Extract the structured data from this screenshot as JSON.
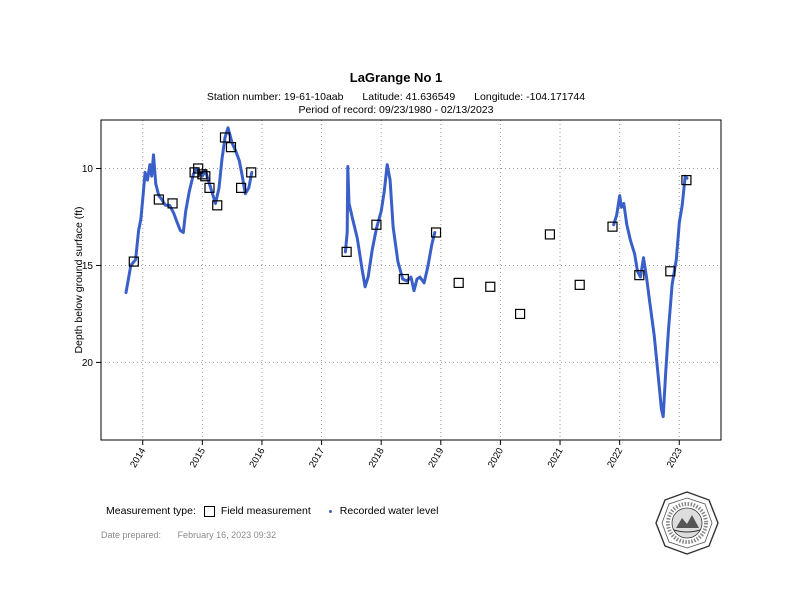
{
  "header": {
    "title": "LaGrange No 1",
    "station": "Station number: 19-61-10aab",
    "latitude": "Latitude: 41.636549",
    "longitude": "Longitude: -104.171744",
    "period": "Period of record: 09/23/1980 - 02/13/2023"
  },
  "legend": {
    "title": "Measurement type:",
    "field_label": "Field measurement",
    "recorded_label": "Recorded water level"
  },
  "footer": {
    "prepared_label": "Date prepared:",
    "prepared_value": "February 16, 2023 09:32"
  },
  "seal": {
    "text": "Wyoming State Engineer's Office"
  },
  "colors": {
    "recorded": "#3a5fc9",
    "field": "#000000",
    "grid": "#9a9a9a"
  },
  "chart_data": {
    "type": "scatter",
    "title": "LaGrange No 1",
    "xlabel": "",
    "ylabel": "Depth below ground surface (ft)",
    "xlim": [
      2013.3,
      2023.7
    ],
    "ylim": [
      24,
      7.5
    ],
    "y_inverted": true,
    "x_ticks": [
      2014,
      2015,
      2016,
      2017,
      2018,
      2019,
      2020,
      2021,
      2022,
      2023
    ],
    "x_tick_labels": [
      "2014",
      "2015",
      "2016",
      "2017",
      "2018",
      "2019",
      "2020",
      "2021",
      "2022",
      "2023"
    ],
    "y_ticks": [
      10,
      15,
      20
    ],
    "y_tick_labels": [
      "10",
      "15",
      "20"
    ],
    "grid": true,
    "legend_position": "bottom-left",
    "series": [
      {
        "name": "Recorded water level",
        "type": "line",
        "segments": [
          [
            [
              2013.72,
              16.4
            ],
            [
              2013.8,
              15.0
            ],
            [
              2013.88,
              14.7
            ],
            [
              2013.93,
              13.2
            ],
            [
              2013.97,
              12.6
            ],
            [
              2014.0,
              11.6
            ],
            [
              2014.04,
              10.2
            ],
            [
              2014.08,
              10.6
            ],
            [
              2014.12,
              9.8
            ],
            [
              2014.15,
              10.4
            ],
            [
              2014.18,
              9.3
            ],
            [
              2014.22,
              10.8
            ],
            [
              2014.27,
              11.4
            ],
            [
              2014.32,
              11.6
            ],
            [
              2014.38,
              11.9
            ],
            [
              2014.45,
              11.9
            ],
            [
              2014.52,
              12.3
            ],
            [
              2014.58,
              12.8
            ],
            [
              2014.63,
              13.2
            ],
            [
              2014.68,
              13.3
            ],
            [
              2014.72,
              12.2
            ],
            [
              2014.78,
              11.2
            ],
            [
              2014.85,
              10.3
            ],
            [
              2014.9,
              10.0
            ],
            [
              2014.95,
              10.2
            ],
            [
              2015.0,
              10.4
            ],
            [
              2015.05,
              10.1
            ],
            [
              2015.1,
              10.6
            ],
            [
              2015.16,
              11.2
            ],
            [
              2015.22,
              11.8
            ],
            [
              2015.28,
              11.0
            ],
            [
              2015.33,
              9.5
            ],
            [
              2015.38,
              8.4
            ],
            [
              2015.43,
              7.9
            ],
            [
              2015.5,
              8.7
            ],
            [
              2015.56,
              9.1
            ],
            [
              2015.62,
              9.6
            ],
            [
              2015.67,
              10.4
            ],
            [
              2015.72,
              11.3
            ],
            [
              2015.78,
              11.0
            ],
            [
              2015.83,
              10.2
            ]
          ],
          [
            [
              2017.4,
              14.3
            ],
            [
              2017.43,
              13.3
            ],
            [
              2017.44,
              9.9
            ],
            [
              2017.46,
              11.8
            ],
            [
              2017.52,
              12.6
            ],
            [
              2017.6,
              13.6
            ],
            [
              2017.68,
              15.2
            ],
            [
              2017.73,
              16.1
            ],
            [
              2017.78,
              15.6
            ],
            [
              2017.85,
              14.2
            ],
            [
              2017.92,
              13.1
            ],
            [
              2018.0,
              12.2
            ],
            [
              2018.05,
              11.2
            ],
            [
              2018.1,
              9.8
            ],
            [
              2018.15,
              10.6
            ],
            [
              2018.2,
              13.0
            ],
            [
              2018.28,
              14.8
            ],
            [
              2018.36,
              15.7
            ],
            [
              2018.43,
              15.8
            ],
            [
              2018.5,
              15.6
            ],
            [
              2018.55,
              16.3
            ],
            [
              2018.6,
              15.7
            ],
            [
              2018.65,
              15.6
            ],
            [
              2018.72,
              15.9
            ],
            [
              2018.78,
              15.1
            ],
            [
              2018.85,
              13.9
            ],
            [
              2018.9,
              13.3
            ]
          ],
          [
            [
              2021.9,
              12.9
            ],
            [
              2021.95,
              12.4
            ],
            [
              2022.0,
              11.4
            ],
            [
              2022.03,
              12.0
            ],
            [
              2022.07,
              11.8
            ],
            [
              2022.12,
              12.9
            ],
            [
              2022.18,
              13.7
            ],
            [
              2022.25,
              14.4
            ],
            [
              2022.3,
              15.3
            ],
            [
              2022.35,
              15.6
            ],
            [
              2022.4,
              14.6
            ],
            [
              2022.45,
              15.6
            ],
            [
              2022.5,
              16.8
            ],
            [
              2022.58,
              18.6
            ],
            [
              2022.65,
              20.8
            ],
            [
              2022.7,
              22.4
            ],
            [
              2022.73,
              22.8
            ],
            [
              2022.77,
              20.6
            ],
            [
              2022.82,
              18.3
            ],
            [
              2022.88,
              16.0
            ],
            [
              2022.95,
              14.7
            ],
            [
              2023.0,
              12.8
            ],
            [
              2023.05,
              11.9
            ],
            [
              2023.1,
              10.4
            ],
            [
              2023.13,
              10.5
            ]
          ]
        ]
      },
      {
        "name": "Field measurement",
        "type": "scatter",
        "points": [
          [
            2013.85,
            14.8
          ],
          [
            2014.27,
            11.6
          ],
          [
            2014.5,
            11.8
          ],
          [
            2014.87,
            10.2
          ],
          [
            2014.93,
            10.0
          ],
          [
            2015.0,
            10.3
          ],
          [
            2015.05,
            10.4
          ],
          [
            2015.12,
            11.0
          ],
          [
            2015.25,
            11.9
          ],
          [
            2015.38,
            8.4
          ],
          [
            2015.48,
            8.9
          ],
          [
            2015.65,
            11.0
          ],
          [
            2015.82,
            10.2
          ],
          [
            2017.42,
            14.3
          ],
          [
            2017.92,
            12.9
          ],
          [
            2018.38,
            15.7
          ],
          [
            2018.92,
            13.3
          ],
          [
            2019.3,
            15.9
          ],
          [
            2019.83,
            16.1
          ],
          [
            2020.33,
            17.5
          ],
          [
            2020.83,
            13.4
          ],
          [
            2021.33,
            16.0
          ],
          [
            2021.88,
            13.0
          ],
          [
            2022.33,
            15.5
          ],
          [
            2022.85,
            15.3
          ],
          [
            2023.12,
            10.6
          ]
        ]
      }
    ]
  }
}
